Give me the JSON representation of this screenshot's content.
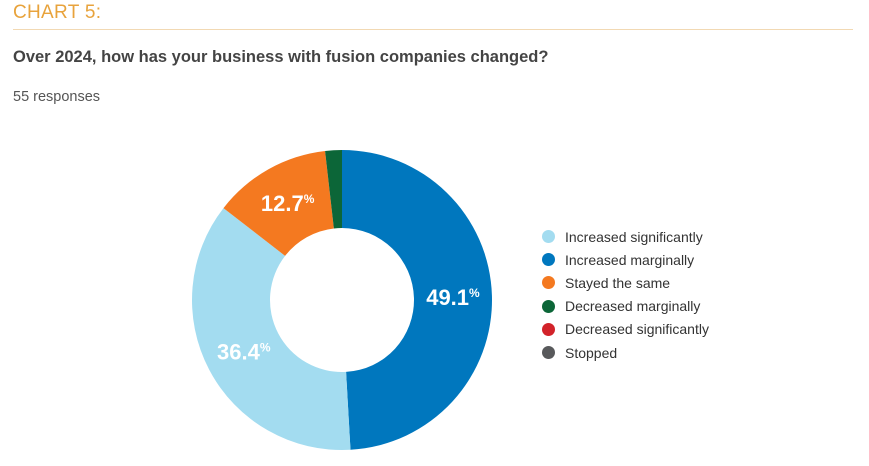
{
  "header": {
    "chart_label": "CHART 5:",
    "question": "Over 2024, how has your business with fusion companies changed?",
    "responses": "55 responses"
  },
  "chart_data": {
    "type": "pie",
    "donut": true,
    "categories": [
      "Increased significantly",
      "Increased marginally",
      "Stayed the same",
      "Decreased marginally",
      "Decreased significantly",
      "Stopped"
    ],
    "values": [
      36.4,
      49.1,
      12.7,
      1.8,
      0,
      0
    ],
    "data_labels": [
      "36.4",
      "49.1",
      "12.7",
      "",
      "",
      ""
    ],
    "label_unit": "%",
    "colors": [
      "#a3dcf0",
      "#0077be",
      "#f47920",
      "#0c6638",
      "#d2232a",
      "#58595b"
    ],
    "legend_position": "right"
  }
}
